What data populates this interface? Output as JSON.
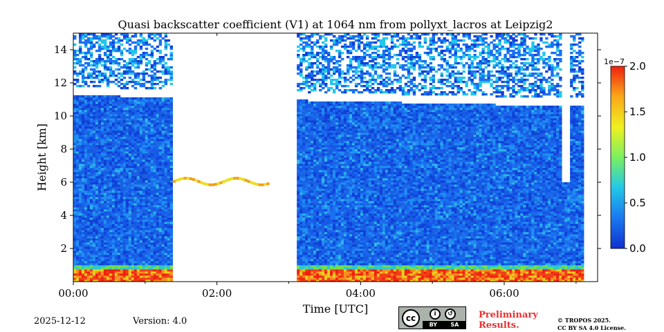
{
  "chart_data": {
    "type": "heatmap",
    "title": "Quasi backscatter coefficient (V1) at 1064 nm from pollyxt_lacros at Leipzig2",
    "xlabel": "Time [UTC]",
    "ylabel": "Height [km]",
    "xlim_hours": [
      0,
      7.3
    ],
    "ylim_km": [
      0,
      15
    ],
    "x_ticks": [
      {
        "value": 0,
        "label": "00:00"
      },
      {
        "value": 2,
        "label": "02:00"
      },
      {
        "value": 4,
        "label": "04:00"
      },
      {
        "value": 6,
        "label": "06:00"
      }
    ],
    "y_ticks": [
      {
        "value": 2,
        "label": "2"
      },
      {
        "value": 4,
        "label": "4"
      },
      {
        "value": 6,
        "label": "6"
      },
      {
        "value": 8,
        "label": "8"
      },
      {
        "value": 10,
        "label": "10"
      },
      {
        "value": 12,
        "label": "12"
      },
      {
        "value": 14,
        "label": "14"
      }
    ],
    "colorbar": {
      "min": 0.0,
      "max": 2.0,
      "scale_label": "1e−7",
      "ticks": [
        "0.0",
        "0.5",
        "1.0",
        "1.5",
        "2.0"
      ],
      "colors": [
        "#1030d0",
        "#1a78f0",
        "#22c8e8",
        "#7af060",
        "#f0f020",
        "#f8a818",
        "#f02010"
      ]
    },
    "features": {
      "data_gaps_hours": [
        [
          1.37,
          2.72
        ],
        [
          2.73,
          3.12
        ]
      ],
      "high_gap_hours": [
        6.8,
        6.92
      ],
      "high_gap_min_km": 6.0,
      "tropopause_band_km": {
        "start": 11.5,
        "end": 10.8
      },
      "cloud_top_km": 6.0,
      "boundary_layer_top_km": 0.8,
      "data_end_hours": 7.1
    }
  },
  "footer": {
    "date": "2025-12-12",
    "version": "Version: 4.0",
    "license_badge": {
      "cc": "cc",
      "by": "BY",
      "sa": "SA"
    },
    "preliminary_line1": "Preliminary",
    "preliminary_line2": "Results.",
    "copyright_line1": "© TROPOS 2025.",
    "copyright_line2": "CC BY SA 4.0 License."
  }
}
